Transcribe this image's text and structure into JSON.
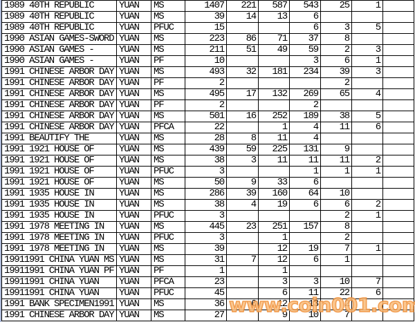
{
  "table": {
    "rows": [
      [
        "1989 40TH REPUBLIC",
        "YUAN",
        "MS",
        "1407",
        "221",
        "587",
        "543",
        "25",
        "1",
        ""
      ],
      [
        "1989 40TH REPUBLIC",
        "YUAN",
        "MS",
        "39",
        "14",
        "13",
        "6",
        "",
        "",
        ""
      ],
      [
        "1989 40TH REPUBLIC",
        "YUAN",
        "PFUC",
        "15",
        "",
        "",
        "6",
        "3",
        "5",
        ""
      ],
      [
        "1990 ASIAN GAMES-SWORD",
        "YUAN",
        "MS",
        "223",
        "86",
        "71",
        "37",
        "8",
        "",
        ""
      ],
      [
        "1990 ASIAN GAMES -",
        "YUAN",
        "MS",
        "211",
        "51",
        "49",
        "59",
        "2",
        "3",
        ""
      ],
      [
        "1990 ASIAN GAMES -",
        "YUAN",
        "PF",
        "10",
        "",
        "",
        "3",
        "6",
        "1",
        ""
      ],
      [
        "1991 CHINESE ARBOR DAY",
        "YUAN",
        "MS",
        "493",
        "32",
        "181",
        "234",
        "39",
        "3",
        ""
      ],
      [
        "1991 CHINESE ARBOR DAY",
        "YUAN",
        "PF",
        "2",
        "",
        "",
        "",
        "2",
        "",
        ""
      ],
      [
        "1991 CHINESE ARBOR DAY",
        "YUAN",
        "MS",
        "495",
        "17",
        "132",
        "269",
        "65",
        "4",
        ""
      ],
      [
        "1991 CHINESE ARBOR DAY",
        "YUAN",
        "PF",
        "2",
        "",
        "",
        "2",
        "",
        "",
        ""
      ],
      [
        "1991 CHINESE ARBOR DAY",
        "YUAN",
        "MS",
        "501",
        "16",
        "252",
        "189",
        "38",
        "5",
        ""
      ],
      [
        "1991 CHINESE ARBOR DAY",
        "YUAN",
        "PFCA",
        "22",
        "",
        "1",
        "4",
        "11",
        "6",
        ""
      ],
      [
        "1991 BEAUTIFY THE",
        "YUAN",
        "MS",
        "28",
        "8",
        "11",
        "4",
        "",
        "",
        ""
      ],
      [
        "1991 1921 HOUSE OF",
        "YUAN",
        "MS",
        "439",
        "59",
        "225",
        "131",
        "9",
        "",
        ""
      ],
      [
        "1991 1921 HOUSE OF",
        "YUAN",
        "MS",
        "38",
        "3",
        "11",
        "11",
        "11",
        "2",
        ""
      ],
      [
        "1991 1921 HOUSE OF",
        "YUAN",
        "PFUC",
        "3",
        "",
        "",
        "1",
        "1",
        "1",
        ""
      ],
      [
        "1991 1921 HOUSE OF",
        "YUAN",
        "MS",
        "50",
        "9",
        "33",
        "6",
        "",
        "",
        ""
      ],
      [
        "1991 1935 HOUSE IN",
        "YUAN",
        "MS",
        "286",
        "39",
        "160",
        "64",
        "10",
        "",
        ""
      ],
      [
        "1991 1935 HOUSE IN",
        "YUAN",
        "MS",
        "38",
        "4",
        "19",
        "6",
        "6",
        "2",
        ""
      ],
      [
        "1991 1935 HOUSE IN",
        "YUAN",
        "PFUC",
        "3",
        "",
        "",
        "",
        "2",
        "1",
        ""
      ],
      [
        "1991 1978 MEETING IN",
        "YUAN",
        "MS",
        "445",
        "23",
        "251",
        "157",
        "8",
        "",
        ""
      ],
      [
        "1991 1978 MEETING IN",
        "YUAN",
        "PFUC",
        "3",
        "",
        "1",
        "",
        "2",
        "",
        ""
      ],
      [
        "1991 1978 MEETING IN",
        "YUAN",
        "MS",
        "39",
        "",
        "12",
        "19",
        "7",
        "1",
        ""
      ],
      [
        "19911991 CHINA YUAN MS",
        "YUAN",
        "MS",
        "31",
        "7",
        "12",
        "6",
        "1",
        "",
        ""
      ],
      [
        "19911991 CHINA YUAN PF",
        "YUAN",
        "PF",
        "1",
        "",
        "1",
        "",
        "",
        "",
        ""
      ],
      [
        "19911991 CHINA YUAN",
        "YUAN",
        "PFCA",
        "23",
        "",
        "3",
        "3",
        "10",
        "7",
        ""
      ],
      [
        "19911991 CHINA YUAN",
        "YUAN",
        "PFUC",
        "45",
        "",
        "6",
        "11",
        "22",
        "6",
        ""
      ],
      [
        "1991 BANK SPECIMEN1991",
        "YUAN",
        "MS",
        "36",
        "6",
        "12",
        "13",
        "2",
        "",
        ""
      ],
      [
        "1991 CHINESE ARBOR DAY",
        "YUAN",
        "MS",
        "27",
        "",
        "9",
        "10",
        "7",
        "",
        ""
      ]
    ]
  },
  "watermark": {
    "text": "www.coin001.com",
    "color": "#f0913c"
  }
}
